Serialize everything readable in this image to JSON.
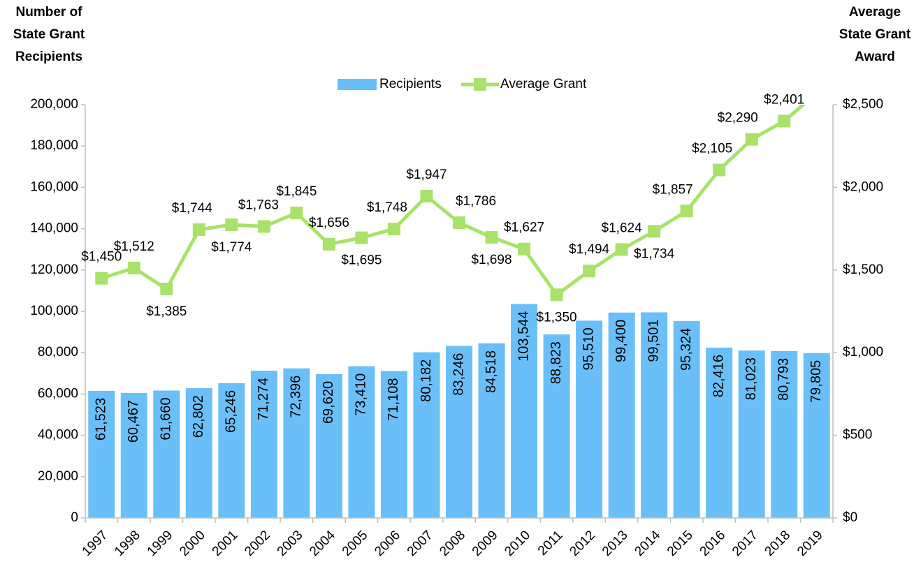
{
  "chart_data": {
    "type": "bar_line",
    "y_label": [
      "Number of",
      "State Grant",
      "Recipients"
    ],
    "y2_label": [
      "Average",
      "State Grant",
      "Award"
    ],
    "categories": [
      "1997",
      "1998",
      "1999",
      "2000",
      "2001",
      "2002",
      "2003",
      "2004",
      "2005",
      "2006",
      "2007",
      "2008",
      "2009",
      "2010",
      "2011",
      "2012",
      "2013",
      "2014",
      "2015",
      "2016",
      "2017",
      "2018",
      "2019"
    ],
    "series": [
      {
        "name": "Recipients",
        "type": "bar",
        "color": "#6bbff9",
        "values": [
          61523,
          60467,
          61660,
          62802,
          65246,
          71274,
          72396,
          69620,
          73410,
          71108,
          80182,
          83246,
          84518,
          103544,
          88823,
          95510,
          99400,
          99501,
          95324,
          82416,
          81023,
          80793,
          79805
        ],
        "value_labels": [
          "61,523",
          "60,467",
          "61,660",
          "62,802",
          "65,246",
          "71,274",
          "72,396",
          "69,620",
          "73,410",
          "71,108",
          "80,182",
          "83,246",
          "84,518",
          "103,544",
          "88,823",
          "95,510",
          "99,400",
          "99,501",
          "95,324",
          "82,416",
          "81,023",
          "80,793",
          "79,805"
        ]
      },
      {
        "name": "Average Grant",
        "type": "line",
        "axis": "y2",
        "color": "#a8e26b",
        "values": [
          1450,
          1512,
          1385,
          1744,
          1774,
          1763,
          1845,
          1656,
          1695,
          1748,
          1947,
          1786,
          1698,
          1627,
          1350,
          1494,
          1624,
          1734,
          1857,
          2105,
          2290,
          2401,
          2570
        ],
        "value_labels": [
          "$1,450",
          "$1,512",
          "$1,385",
          "$1,744",
          "$1,774",
          "$1,763",
          "$1,845",
          "$1,656",
          "$1,695",
          "$1,748",
          "$1,947",
          "$1,786",
          "$1,698",
          "$1,627",
          "$1,350",
          "$1,494",
          "$1,624",
          "$1,734",
          "$1,857",
          "$2,105",
          "$2,290",
          "$2,401",
          null
        ]
      }
    ],
    "ylim": [
      0,
      200000
    ],
    "yticks": [
      0,
      {
        "value": 20000,
        "label": "20,000"
      },
      {
        "value": 40000,
        "label": "40,000"
      },
      {
        "value": 60000,
        "label": "60,000"
      },
      {
        "value": 80000,
        "label": "80,000"
      },
      {
        "value": 100000,
        "label": "100,000"
      },
      {
        "value": 120000,
        "label": "120,000"
      },
      {
        "value": 140000,
        "label": "140,000"
      },
      {
        "value": 160000,
        "label": "160,000"
      },
      {
        "value": 180000,
        "label": "180,000"
      },
      {
        "value": 200000,
        "label": "200,000"
      }
    ],
    "y2lim": [
      0,
      2500
    ],
    "y2ticks": [
      {
        "value": 0,
        "label": "$0"
      },
      {
        "value": 500,
        "label": "$500"
      },
      {
        "value": 1000,
        "label": "$1,000"
      },
      {
        "value": 1500,
        "label": "$1,500"
      },
      {
        "value": 2000,
        "label": "$2,000"
      },
      {
        "value": 2500,
        "label": "$2,500"
      }
    ],
    "legend": "top"
  }
}
